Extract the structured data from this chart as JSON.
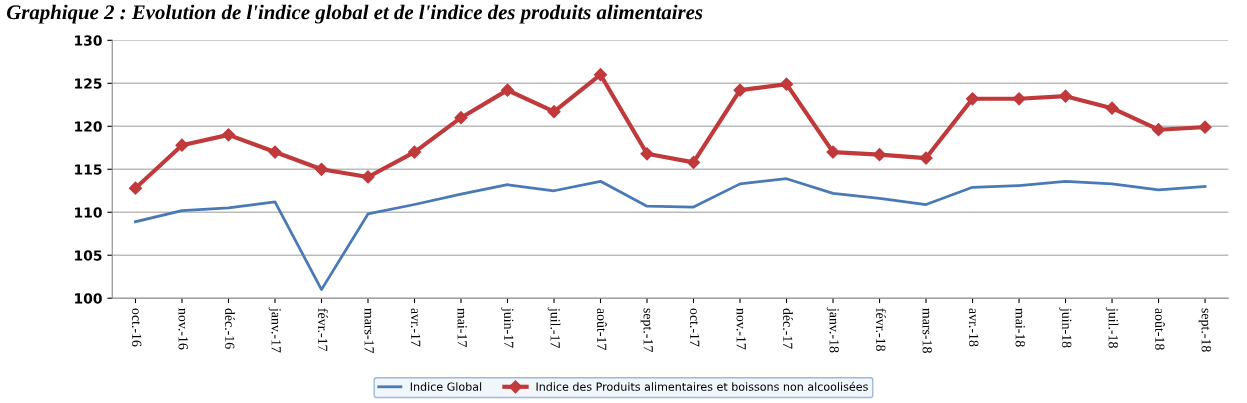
{
  "chart_data": {
    "type": "line",
    "title": "Graphique 2 : Evolution de l'indice global et de l'indice des produits alimentaires",
    "categories": [
      "oct.-16",
      "nov.-16",
      "déc.-16",
      "janv.-17",
      "févr.-17",
      "mars-17",
      "avr.-17",
      "mai-17",
      "juin-17",
      "juil.-17",
      "août-17",
      "sept.-17",
      "oct.-17",
      "nov.-17",
      "déc.-17",
      "janv.-18",
      "févr.-18",
      "mars-18",
      "avr.-18",
      "mai-18",
      "juin-18",
      "juil.-18",
      "août-18",
      "sept.-18"
    ],
    "series": [
      {
        "name": "Indice Global",
        "color": "#4a7ab5",
        "marker": "none",
        "values": [
          108.9,
          110.2,
          110.5,
          111.2,
          101,
          109.8,
          110.9,
          112.1,
          113.2,
          112.5,
          113.6,
          110.7,
          110.6,
          113.3,
          113.9,
          112.2,
          111.6,
          110.9,
          112.9,
          113.1,
          113.6,
          113.3,
          112.6,
          113.0
        ]
      },
      {
        "name": "Indice des Produits alimentaires et boissons non alcoolisées",
        "color": "#c0393b",
        "marker": "diamond",
        "values": [
          112.8,
          117.8,
          119,
          117,
          115,
          114.1,
          117,
          121,
          124.2,
          121.7,
          126,
          116.8,
          115.8,
          124.2,
          124.9,
          117,
          116.7,
          116.3,
          123.2,
          123.2,
          123.5,
          122.1,
          119.6,
          119.9
        ]
      }
    ],
    "ylim": [
      100,
      130
    ],
    "yticks": [
      100,
      105,
      110,
      115,
      120,
      125,
      130
    ],
    "grid": "y",
    "legend": "bottom",
    "line_style": "solid"
  }
}
